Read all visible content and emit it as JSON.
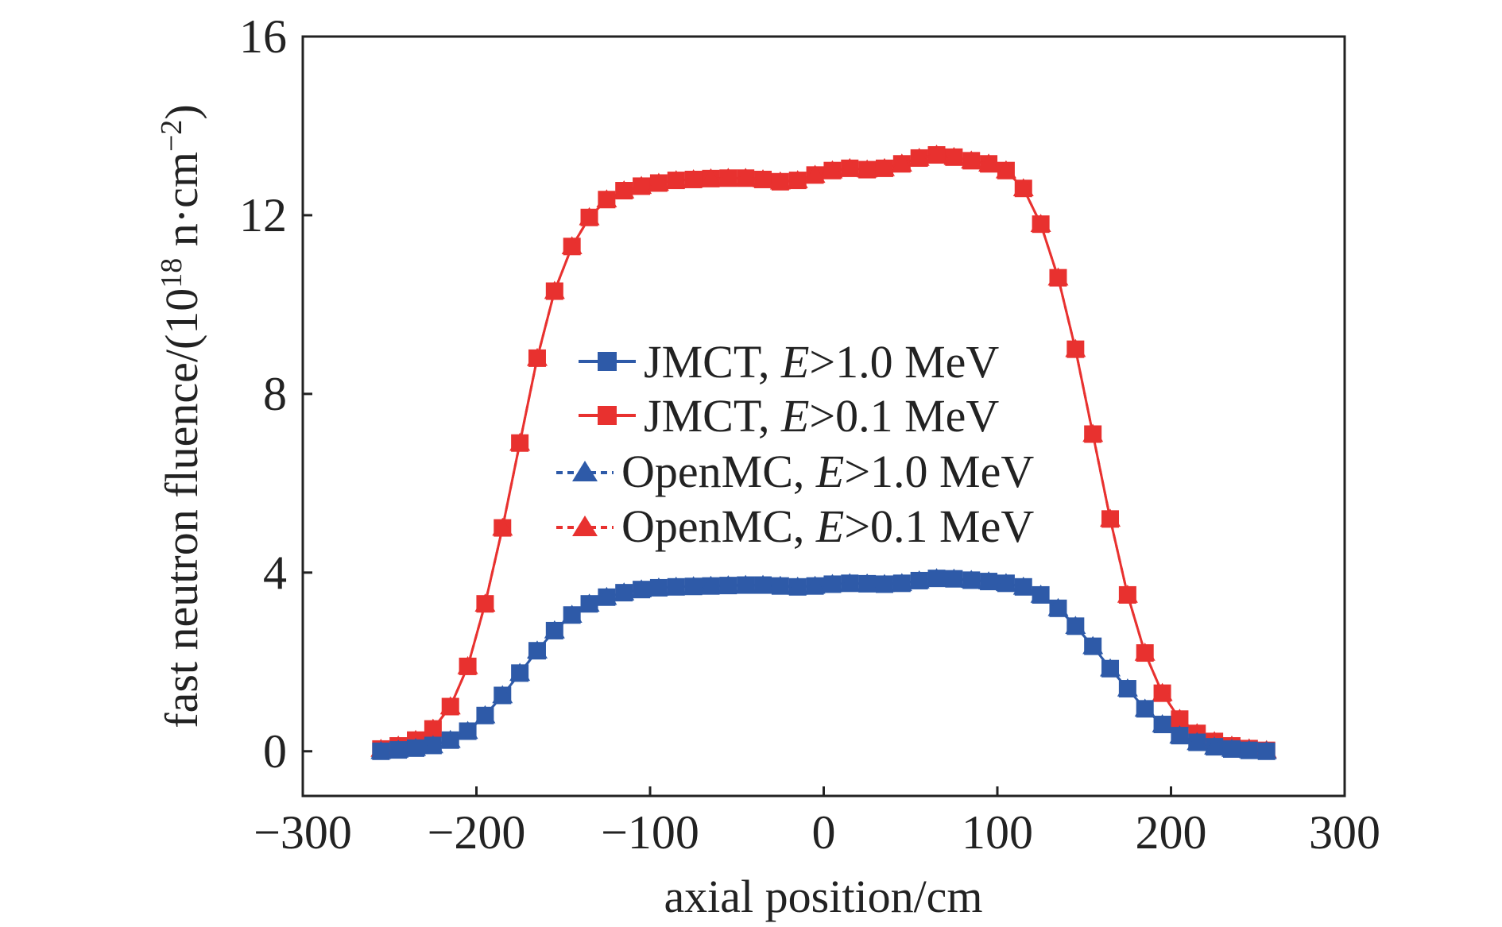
{
  "chart_data": {
    "type": "line",
    "title": "",
    "xlabel": "axial position/cm",
    "ylabel_main": "fast neutron fluence/(10",
    "ylabel_sup1": "18",
    "ylabel_mid": " n·cm",
    "ylabel_sup2": "−2",
    "ylabel_end": ")",
    "xlim": [
      -300,
      300
    ],
    "ylim": [
      -1,
      16
    ],
    "x_ticks": [
      -300,
      -200,
      -100,
      0,
      100,
      200,
      300
    ],
    "x_tick_labels": [
      "−300",
      "−200",
      "−100",
      "0",
      "100",
      "200",
      "300"
    ],
    "y_ticks": [
      0,
      4,
      8,
      12,
      16
    ],
    "y_tick_labels": [
      "0",
      "4",
      "8",
      "12",
      "16"
    ],
    "grid": false,
    "legend_position": "center",
    "legend": [
      {
        "prefix": "JMCT, ",
        "italic": "E",
        "suffix": ">1.0 MeV",
        "color": "#2e5aa8",
        "marker": "square",
        "dash": "solid"
      },
      {
        "prefix": "JMCT, ",
        "italic": "E",
        "suffix": ">0.1 MeV",
        "color": "#e8312f",
        "marker": "square",
        "dash": "solid"
      },
      {
        "prefix": "OpenMC, ",
        "italic": "E",
        "suffix": ">1.0 MeV",
        "color": "#2e5aa8",
        "marker": "triangle",
        "dash": "dashed"
      },
      {
        "prefix": "OpenMC, ",
        "italic": "E",
        "suffix": ">0.1 MeV",
        "color": "#e8312f",
        "marker": "triangle",
        "dash": "dashed"
      }
    ],
    "x": [
      -255,
      -245,
      -235,
      -225,
      -215,
      -205,
      -195,
      -185,
      -175,
      -165,
      -155,
      -145,
      -135,
      -125,
      -115,
      -105,
      -95,
      -85,
      -75,
      -65,
      -55,
      -45,
      -35,
      -25,
      -15,
      -5,
      5,
      15,
      25,
      35,
      45,
      55,
      65,
      75,
      85,
      95,
      105,
      115,
      125,
      135,
      145,
      155,
      165,
      175,
      185,
      195,
      205,
      215,
      225,
      235,
      245,
      255
    ],
    "series": [
      {
        "name": "JMCT, E>1.0 MeV",
        "color": "#2e5aa8",
        "marker": "square",
        "dash": "solid",
        "values": [
          0.0,
          0.03,
          0.07,
          0.13,
          0.25,
          0.45,
          0.8,
          1.25,
          1.75,
          2.25,
          2.7,
          3.05,
          3.3,
          3.45,
          3.55,
          3.62,
          3.66,
          3.68,
          3.69,
          3.7,
          3.71,
          3.72,
          3.72,
          3.7,
          3.68,
          3.7,
          3.74,
          3.76,
          3.75,
          3.74,
          3.76,
          3.82,
          3.87,
          3.86,
          3.83,
          3.8,
          3.76,
          3.68,
          3.5,
          3.2,
          2.8,
          2.35,
          1.85,
          1.4,
          0.95,
          0.6,
          0.35,
          0.2,
          0.1,
          0.05,
          0.02,
          0.0
        ]
      },
      {
        "name": "JMCT, E>0.1 MeV",
        "color": "#e8312f",
        "marker": "square",
        "dash": "solid",
        "values": [
          0.05,
          0.12,
          0.25,
          0.5,
          1.0,
          1.9,
          3.3,
          5.0,
          6.9,
          8.8,
          10.3,
          11.3,
          11.95,
          12.35,
          12.55,
          12.65,
          12.72,
          12.78,
          12.8,
          12.82,
          12.83,
          12.83,
          12.8,
          12.75,
          12.78,
          12.9,
          13.0,
          13.05,
          13.02,
          13.05,
          13.15,
          13.28,
          13.35,
          13.3,
          13.22,
          13.15,
          13.0,
          12.6,
          11.8,
          10.6,
          9.0,
          7.1,
          5.2,
          3.5,
          2.2,
          1.3,
          0.72,
          0.4,
          0.22,
          0.12,
          0.06,
          0.02
        ]
      },
      {
        "name": "OpenMC, E>1.0 MeV",
        "color": "#2e5aa8",
        "marker": "triangle",
        "dash": "dashed",
        "values": [
          0.0,
          0.03,
          0.07,
          0.13,
          0.25,
          0.45,
          0.8,
          1.25,
          1.75,
          2.25,
          2.7,
          3.05,
          3.3,
          3.45,
          3.55,
          3.62,
          3.66,
          3.68,
          3.69,
          3.7,
          3.71,
          3.72,
          3.72,
          3.7,
          3.68,
          3.7,
          3.74,
          3.76,
          3.75,
          3.74,
          3.76,
          3.82,
          3.87,
          3.86,
          3.83,
          3.8,
          3.76,
          3.68,
          3.5,
          3.2,
          2.8,
          2.35,
          1.85,
          1.4,
          0.95,
          0.6,
          0.35,
          0.2,
          0.1,
          0.05,
          0.02,
          0.0
        ]
      },
      {
        "name": "OpenMC, E>0.1 MeV",
        "color": "#e8312f",
        "marker": "triangle",
        "dash": "dashed",
        "values": [
          0.05,
          0.12,
          0.25,
          0.5,
          1.0,
          1.9,
          3.3,
          5.0,
          6.9,
          8.8,
          10.3,
          11.3,
          11.95,
          12.35,
          12.55,
          12.65,
          12.72,
          12.78,
          12.8,
          12.82,
          12.83,
          12.83,
          12.8,
          12.75,
          12.78,
          12.9,
          13.0,
          13.05,
          13.02,
          13.05,
          13.15,
          13.28,
          13.35,
          13.3,
          13.22,
          13.15,
          13.0,
          12.6,
          11.8,
          10.6,
          9.0,
          7.1,
          5.2,
          3.5,
          2.2,
          1.3,
          0.72,
          0.4,
          0.22,
          0.12,
          0.06,
          0.02
        ]
      }
    ]
  }
}
